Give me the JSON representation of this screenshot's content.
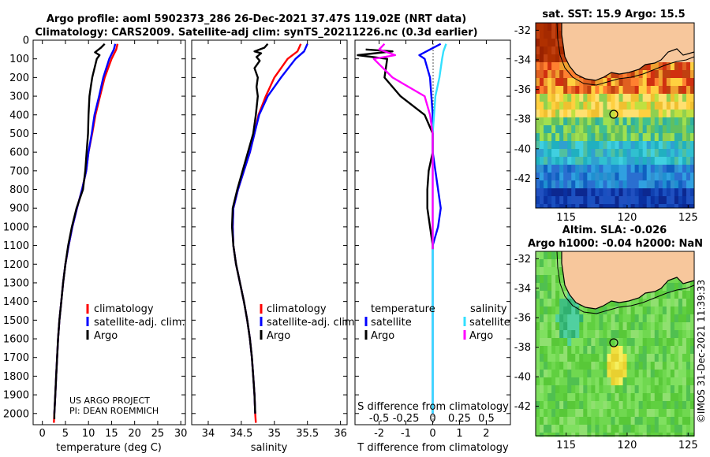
{
  "header": {
    "title_line1": "Argo profile: aoml 5902373_286 26-Dec-2021 37.47S 119.02E (NRT data)",
    "title_line2": "Climatology: CARS2009. Satellite-adj clim: synTS_20211226.nc (0.3d earlier)"
  },
  "colors": {
    "climatology": "#ff0000",
    "satellite_adj": "#0000ff",
    "argo": "#000000",
    "sat_diff_s": "#33e0ff",
    "argo_diff_s": "#ff00ff",
    "land": "#f7c79c"
  },
  "credit": {
    "line1": "US ARGO PROJECT",
    "line2": "PI: DEAN ROEMMICH",
    "stamp": "©IMOS 31-Dec-2021 11:39:33"
  },
  "chart_data": [
    {
      "type": "line",
      "id": "temperature",
      "xlabel": "temperature (deg C)",
      "ylabel": "",
      "xlim": [
        -2,
        31
      ],
      "ylim": [
        2060,
        0
      ],
      "xticks": [
        "0",
        "5",
        "10",
        "15",
        "20",
        "25",
        "30"
      ],
      "yticks": [
        "0",
        "100",
        "200",
        "300",
        "400",
        "500",
        "600",
        "700",
        "800",
        "900",
        "1000",
        "1100",
        "1200",
        "1300",
        "1400",
        "1500",
        "1600",
        "1700",
        "1800",
        "1900",
        "2000"
      ],
      "legend": [
        "climatology",
        "satellite-adj. clim.",
        "Argo"
      ],
      "series": [
        {
          "name": "climatology",
          "color": "#ff0000",
          "points": [
            [
              16.3,
              20
            ],
            [
              16,
              50
            ],
            [
              15,
              100
            ],
            [
              13.5,
              200
            ],
            [
              12.5,
              300
            ],
            [
              11.5,
              400
            ],
            [
              10.8,
              500
            ],
            [
              10,
              600
            ],
            [
              9.5,
              700
            ],
            [
              8.6,
              800
            ],
            [
              7.5,
              900
            ],
            [
              6.5,
              1000
            ],
            [
              5.7,
              1100
            ],
            [
              5,
              1200
            ],
            [
              4.5,
              1300
            ],
            [
              4.1,
              1400
            ],
            [
              3.7,
              1500
            ],
            [
              3.4,
              1600
            ],
            [
              3.2,
              1700
            ],
            [
              3,
              1800
            ],
            [
              2.8,
              1900
            ],
            [
              2.6,
              2000
            ],
            [
              2.5,
              2050
            ]
          ]
        },
        {
          "name": "satellite-adj. clim.",
          "color": "#0000ff",
          "points": [
            [
              15.8,
              20
            ],
            [
              15.5,
              50
            ],
            [
              14.5,
              100
            ],
            [
              13.2,
              200
            ],
            [
              12.3,
              300
            ],
            [
              11.3,
              400
            ],
            [
              10.7,
              500
            ],
            [
              10,
              600
            ],
            [
              9.5,
              700
            ],
            [
              8.6,
              800
            ],
            [
              7.5,
              900
            ],
            [
              6.5,
              1000
            ],
            [
              5.7,
              1100
            ],
            [
              5,
              1200
            ],
            [
              4.5,
              1300
            ],
            [
              4.1,
              1400
            ],
            [
              3.7,
              1500
            ],
            [
              3.4,
              1600
            ],
            [
              3.2,
              1700
            ],
            [
              3,
              1800
            ],
            [
              2.8,
              1900
            ],
            [
              2.6,
              2000
            ]
          ]
        },
        {
          "name": "Argo",
          "color": "#000000",
          "points": [
            [
              13.5,
              20
            ],
            [
              12.7,
              40
            ],
            [
              11.4,
              65
            ],
            [
              12.4,
              80
            ],
            [
              11.8,
              100
            ],
            [
              11.3,
              150
            ],
            [
              10.8,
              200
            ],
            [
              10.5,
              250
            ],
            [
              10.2,
              300
            ],
            [
              10,
              400
            ],
            [
              9.9,
              500
            ],
            [
              9.6,
              600
            ],
            [
              9.3,
              700
            ],
            [
              8.8,
              800
            ],
            [
              7.4,
              900
            ],
            [
              6.4,
              1000
            ],
            [
              5.6,
              1100
            ],
            [
              5,
              1200
            ],
            [
              4.5,
              1300
            ],
            [
              4.1,
              1400
            ],
            [
              3.7,
              1500
            ],
            [
              3.4,
              1600
            ],
            [
              3.2,
              1700
            ],
            [
              3,
              1800
            ],
            [
              2.8,
              1900
            ],
            [
              2.6,
              2000
            ],
            [
              2.6,
              2030
            ]
          ]
        }
      ]
    },
    {
      "type": "line",
      "id": "salinity",
      "xlabel": "salinity",
      "xlim": [
        33.75,
        36.1
      ],
      "ylim": [
        2060,
        0
      ],
      "xticks": [
        "34",
        "34.5",
        "35",
        "35.5",
        "36"
      ],
      "legend": [
        "climatology",
        "satellite-adj. clim.",
        "Argo"
      ],
      "series": [
        {
          "name": "climatology",
          "color": "#ff0000",
          "points": [
            [
              35.4,
              20
            ],
            [
              35.35,
              60
            ],
            [
              35.2,
              100
            ],
            [
              35,
              200
            ],
            [
              34.87,
              300
            ],
            [
              34.76,
              400
            ],
            [
              34.7,
              500
            ],
            [
              34.63,
              600
            ],
            [
              34.54,
              700
            ],
            [
              34.45,
              800
            ],
            [
              34.38,
              900
            ],
            [
              34.37,
              1000
            ],
            [
              34.38,
              1100
            ],
            [
              34.42,
              1200
            ],
            [
              34.48,
              1300
            ],
            [
              34.54,
              1400
            ],
            [
              34.59,
              1500
            ],
            [
              34.63,
              1600
            ],
            [
              34.66,
              1700
            ],
            [
              34.68,
              1800
            ],
            [
              34.7,
              1900
            ],
            [
              34.71,
              2000
            ],
            [
              34.72,
              2050
            ]
          ]
        },
        {
          "name": "satellite-adj. clim.",
          "color": "#0000ff",
          "points": [
            [
              35.5,
              20
            ],
            [
              35.45,
              60
            ],
            [
              35.32,
              100
            ],
            [
              35.1,
              200
            ],
            [
              34.9,
              300
            ],
            [
              34.77,
              400
            ],
            [
              34.7,
              500
            ],
            [
              34.63,
              600
            ],
            [
              34.54,
              700
            ],
            [
              34.45,
              800
            ],
            [
              34.38,
              900
            ],
            [
              34.37,
              1000
            ],
            [
              34.38,
              1100
            ],
            [
              34.42,
              1200
            ],
            [
              34.48,
              1300
            ],
            [
              34.54,
              1400
            ],
            [
              34.59,
              1500
            ],
            [
              34.63,
              1600
            ],
            [
              34.66,
              1700
            ],
            [
              34.68,
              1800
            ],
            [
              34.7,
              1900
            ],
            [
              34.71,
              2000
            ]
          ]
        },
        {
          "name": "Argo",
          "color": "#000000",
          "points": [
            [
              34.9,
              20
            ],
            [
              34.85,
              40
            ],
            [
              34.7,
              60
            ],
            [
              34.8,
              70
            ],
            [
              34.73,
              90
            ],
            [
              34.78,
              110
            ],
            [
              34.7,
              150
            ],
            [
              34.75,
              200
            ],
            [
              34.73,
              250
            ],
            [
              34.75,
              300
            ],
            [
              34.72,
              400
            ],
            [
              34.68,
              500
            ],
            [
              34.6,
              600
            ],
            [
              34.52,
              700
            ],
            [
              34.44,
              800
            ],
            [
              34.37,
              900
            ],
            [
              34.36,
              1000
            ],
            [
              34.38,
              1100
            ],
            [
              34.42,
              1200
            ],
            [
              34.48,
              1300
            ],
            [
              34.54,
              1400
            ],
            [
              34.59,
              1500
            ],
            [
              34.63,
              1600
            ],
            [
              34.66,
              1700
            ],
            [
              34.68,
              1800
            ],
            [
              34.7,
              1900
            ],
            [
              34.71,
              2000
            ]
          ]
        }
      ]
    },
    {
      "type": "line",
      "id": "difference",
      "xlabel": "T difference from climatology",
      "xlabel2": "S difference from climatology",
      "xlim": [
        -2.9,
        2.9
      ],
      "ylim": [
        2060,
        0
      ],
      "xticks": [
        "-2",
        "-1",
        "0",
        "1",
        "2"
      ],
      "s_ticks": [
        "-0.5",
        "-0.25",
        "0",
        "0.25",
        "0.5"
      ],
      "legend_headers": [
        "temperature",
        "salinity"
      ],
      "legend": [
        "satellite",
        "Argo",
        "satellite",
        "Argo"
      ],
      "series": [
        {
          "name": "T satellite",
          "color": "#0000ff",
          "points": [
            [
              0.3,
              20
            ],
            [
              -0.1,
              50
            ],
            [
              -0.5,
              80
            ],
            [
              -0.3,
              100
            ],
            [
              -0.1,
              200
            ],
            [
              -0.05,
              300
            ],
            [
              0,
              400
            ],
            [
              0,
              500
            ],
            [
              0,
              600
            ],
            [
              0.1,
              700
            ],
            [
              0.2,
              800
            ],
            [
              0.3,
              900
            ],
            [
              0.2,
              1000
            ],
            [
              0.1,
              1050
            ],
            [
              0,
              1100
            ],
            [
              0,
              2000
            ]
          ]
        },
        {
          "name": "T Argo",
          "color": "#000000",
          "points": [
            [
              -2.5,
              50
            ],
            [
              -1.5,
              60
            ],
            [
              -2.8,
              80
            ],
            [
              -1.7,
              100
            ],
            [
              -1.8,
              200
            ],
            [
              -1.2,
              300
            ],
            [
              -0.3,
              400
            ],
            [
              0,
              500
            ],
            [
              0,
              600
            ],
            [
              -0.15,
              700
            ],
            [
              -0.2,
              800
            ],
            [
              -0.2,
              900
            ],
            [
              -0.1,
              1000
            ],
            [
              0,
              1100
            ],
            [
              0,
              1120
            ]
          ]
        },
        {
          "name": "S satellite",
          "color": "#33e0ff",
          "points": [
            [
              0.5,
              20
            ],
            [
              0.4,
              60
            ],
            [
              0.35,
              100
            ],
            [
              0.25,
              200
            ],
            [
              0.1,
              300
            ],
            [
              0.05,
              400
            ],
            [
              0,
              500
            ],
            [
              0,
              2000
            ]
          ]
        },
        {
          "name": "S Argo",
          "color": "#ff00ff",
          "points": [
            [
              -1.8,
              20
            ],
            [
              -2,
              50
            ],
            [
              -1.4,
              80
            ],
            [
              -2.2,
              100
            ],
            [
              -1.5,
              200
            ],
            [
              -0.3,
              300
            ],
            [
              -0.1,
              400
            ],
            [
              0,
              500
            ],
            [
              0,
              600
            ],
            [
              0,
              700
            ],
            [
              0,
              800
            ],
            [
              0,
              900
            ],
            [
              0,
              1000
            ],
            [
              0,
              1100
            ],
            [
              0,
              1120
            ]
          ]
        }
      ]
    },
    {
      "type": "heatmap",
      "id": "sst_map",
      "title": "sat. SST: 15.9 Argo: 15.5",
      "xlim": [
        112.5,
        125.5
      ],
      "ylim": [
        -44,
        -31.5
      ],
      "xticks": [
        "115",
        "120",
        "125"
      ],
      "yticks": [
        "-32",
        "-34",
        "-36",
        "-38",
        "-40",
        "-42"
      ],
      "float_position": {
        "lon": 119.02,
        "lat": -37.47
      }
    },
    {
      "type": "heatmap",
      "id": "sla_map",
      "title_line1": "Altim. SLA: -0.026",
      "title_line2": "Argo h1000: -0.04 h2000: NaN",
      "xlim": [
        112.5,
        125.5
      ],
      "ylim": [
        -44,
        -31.5
      ],
      "xticks": [
        "115",
        "120",
        "125"
      ],
      "yticks": [
        "-32",
        "-34",
        "-36",
        "-38",
        "-40",
        "-42"
      ],
      "float_position": {
        "lon": 119.02,
        "lat": -37.47
      }
    }
  ]
}
